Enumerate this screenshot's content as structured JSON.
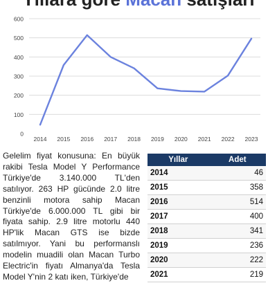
{
  "title": {
    "prefix": "Yıllara göre",
    "highlight": "Macan",
    "suffix": "satışları"
  },
  "chart_data": {
    "type": "line",
    "title": "Yıllara göre Macan satışları",
    "x": [
      "2014",
      "2015",
      "2016",
      "2017",
      "2018",
      "2019",
      "2020",
      "2021",
      "2022",
      "2023"
    ],
    "series": [
      {
        "values": [
          46,
          358,
          514,
          400,
          341,
          236,
          222,
          219,
          303,
          496
        ]
      }
    ],
    "ylim": [
      0,
      600
    ],
    "yticks": [
      0,
      100,
      200,
      300,
      400,
      500,
      600
    ],
    "grid": true,
    "line_color": "#6b82de"
  },
  "article_text": "Gelelim fiyat konusuna: En büyük rakibi Tesla Model Y Performance Türkiye'de 3.140.000 TL'den satılıyor. 263 HP gücünde 2.0 litre benzinli motora sahip Macan Türkiye'de 6.000.000 TL gibi bir fiyata sahip. 2.9 litre motorlu 440 HP'lik Macan GTS ise bizde satılmıyor. Yani bu performanslı modelin muadili olan Macan Turbo Electric'in fiyatı Almanya'da Tesla Model Y'nin 2 katı iken, Türkiye'de",
  "table": {
    "headers": [
      "Yıllar",
      "Adet"
    ],
    "rows": [
      {
        "year": "2014",
        "count": "46"
      },
      {
        "year": "2015",
        "count": "358"
      },
      {
        "year": "2016",
        "count": "514"
      },
      {
        "year": "2017",
        "count": "400"
      },
      {
        "year": "2018",
        "count": "341"
      },
      {
        "year": "2019",
        "count": "236"
      },
      {
        "year": "2020",
        "count": "222"
      },
      {
        "year": "2021",
        "count": "219"
      }
    ]
  }
}
